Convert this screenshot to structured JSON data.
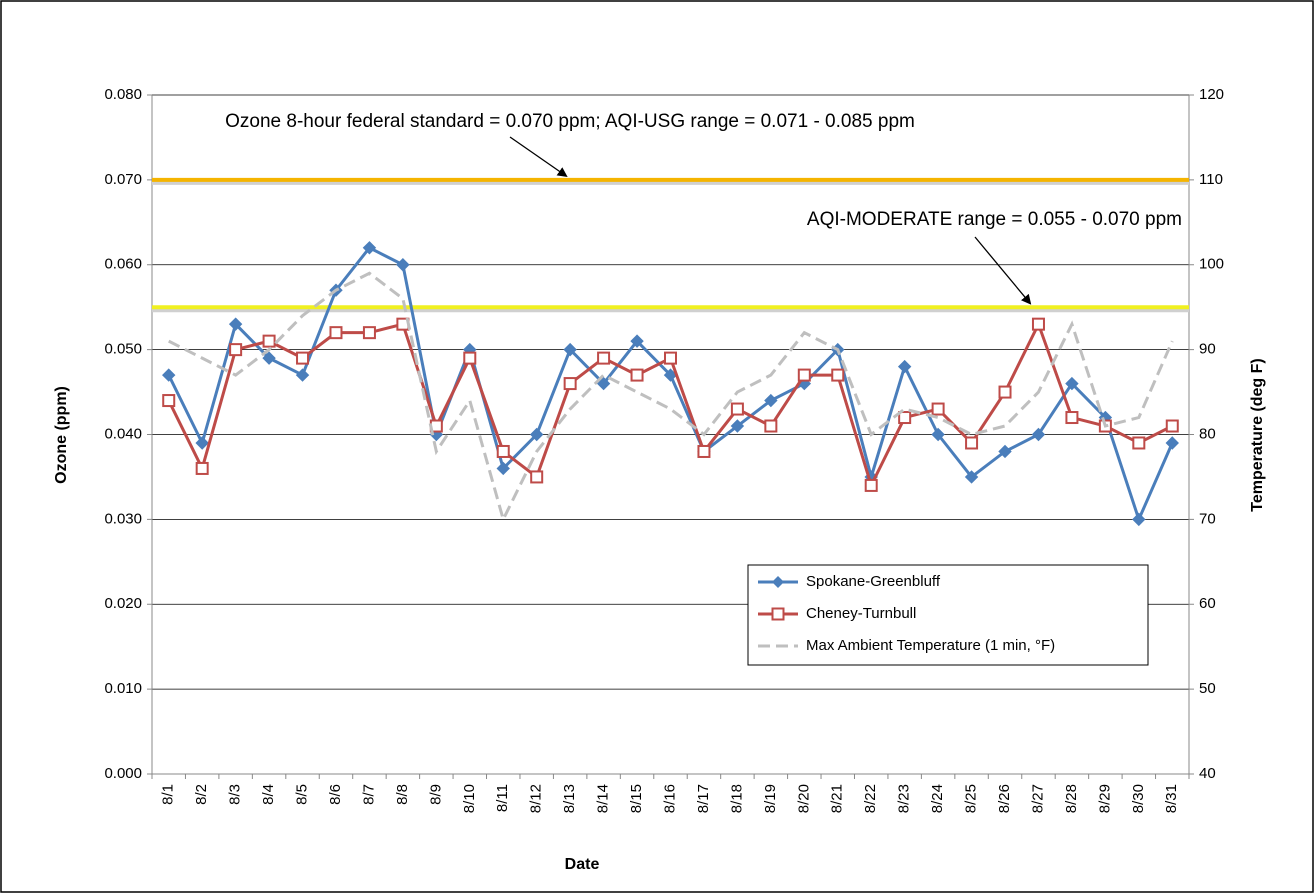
{
  "chart_data": {
    "type": "line",
    "x_label": "Date",
    "y_label": "Ozone (ppm)",
    "y2_label": "Temperature (deg F)",
    "categories": [
      "8/1",
      "8/2",
      "8/3",
      "8/4",
      "8/5",
      "8/6",
      "8/7",
      "8/8",
      "8/9",
      "8/10",
      "8/11",
      "8/12",
      "8/13",
      "8/14",
      "8/15",
      "8/16",
      "8/17",
      "8/18",
      "8/19",
      "8/20",
      "8/21",
      "8/22",
      "8/23",
      "8/24",
      "8/25",
      "8/26",
      "8/27",
      "8/28",
      "8/29",
      "8/30",
      "8/31"
    ],
    "series": [
      {
        "name": "Spokane-Greenbluff",
        "color": "#4a7ebb",
        "marker": "diamond",
        "values": [
          0.047,
          0.039,
          0.053,
          0.049,
          0.047,
          0.057,
          0.062,
          0.06,
          0.04,
          0.05,
          0.036,
          0.04,
          0.05,
          0.046,
          0.051,
          0.047,
          0.038,
          0.041,
          0.044,
          0.046,
          0.05,
          0.035,
          0.048,
          0.04,
          0.035,
          0.038,
          0.04,
          0.046,
          0.042,
          0.03,
          0.039
        ]
      },
      {
        "name": "Cheney-Turnbull",
        "color": "#be4b48",
        "marker": "square",
        "values": [
          0.044,
          0.036,
          0.05,
          0.051,
          0.049,
          0.052,
          0.052,
          0.053,
          0.041,
          0.049,
          0.038,
          0.035,
          0.046,
          0.049,
          0.047,
          0.049,
          0.038,
          0.043,
          0.041,
          0.047,
          0.047,
          0.034,
          0.042,
          0.043,
          0.039,
          0.045,
          0.053,
          0.042,
          0.041,
          0.039,
          0.041
        ]
      },
      {
        "name": "Max Ambient Temperature (1 min, °F)",
        "color": "#bfbfbf",
        "dashed": true,
        "axis": "y2",
        "values": [
          91,
          89,
          87,
          90,
          94,
          97,
          99,
          96,
          78,
          84,
          70,
          78,
          83,
          87,
          85,
          83,
          80,
          85,
          87,
          92,
          90,
          80,
          83,
          82,
          80,
          81,
          85,
          93,
          81,
          82,
          91
        ]
      }
    ],
    "ylim": [
      0,
      0.08
    ],
    "yticks": [
      {
        "value": 0,
        "label": "0.000"
      },
      {
        "value": 0.01,
        "label": "0.010"
      },
      {
        "value": 0.02,
        "label": "0.020"
      },
      {
        "value": 0.03,
        "label": "0.030"
      },
      {
        "value": 0.04,
        "label": "0.040"
      },
      {
        "value": 0.05,
        "label": "0.050"
      },
      {
        "value": 0.06,
        "label": "0.060"
      },
      {
        "value": 0.07,
        "label": "0.070"
      },
      {
        "value": 0.08,
        "label": "0.080"
      }
    ],
    "y2lim": [
      40,
      120
    ],
    "y2ticks": [
      40,
      50,
      60,
      70,
      80,
      90,
      100,
      110,
      120
    ],
    "grid": true,
    "legend": "lower right",
    "reference_lines": [
      {
        "value": 0.07,
        "color": "#f5b400",
        "label": "Ozone 8-hour federal standard = 0.070 ppm; AQI-USG range = 0.071 - 0.085 ppm"
      },
      {
        "value": 0.055,
        "color": "#f0f020",
        "label": "AQI-MODERATE range = 0.055 - 0.070 ppm"
      }
    ]
  }
}
